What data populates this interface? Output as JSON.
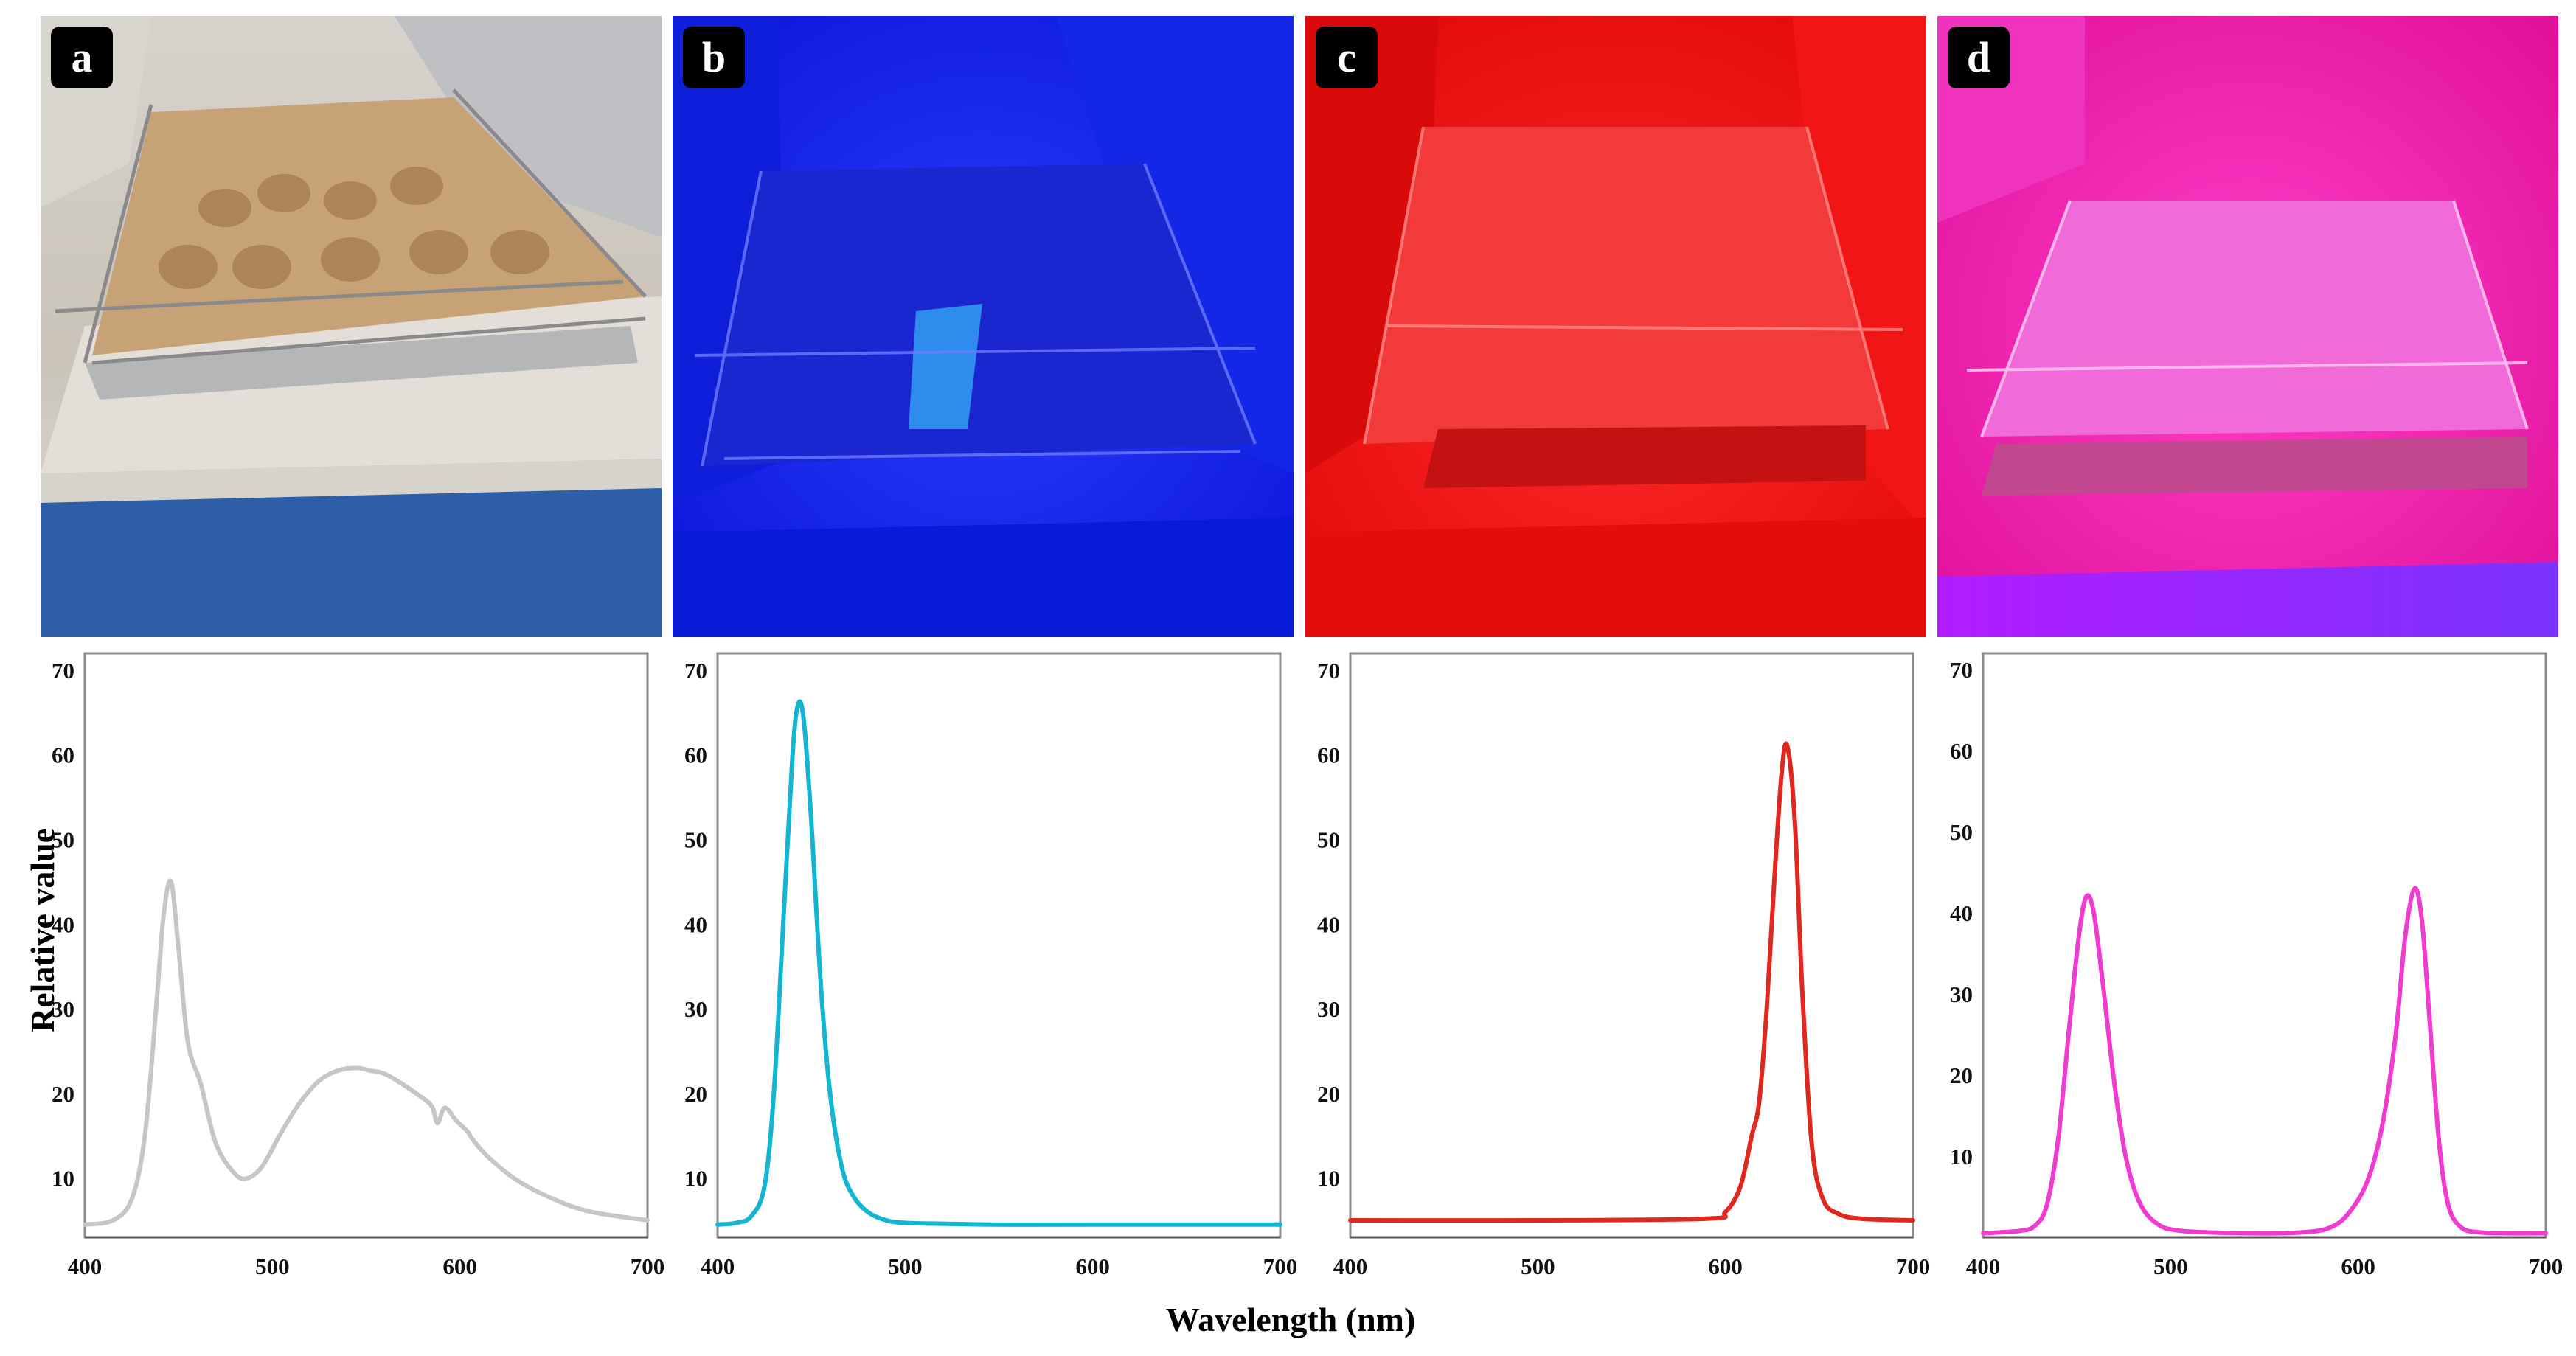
{
  "figure": {
    "ylabel": "Relative value",
    "xlabel": "Wavelength (nm)"
  },
  "panels": [
    {
      "label": "a",
      "light": "white",
      "tint": "#b5a389"
    },
    {
      "label": "b",
      "light": "blue",
      "tint": "#1a28ff"
    },
    {
      "label": "c",
      "light": "red",
      "tint": "#ff1a1a"
    },
    {
      "label": "d",
      "light": "red-blue",
      "tint": "#ff1fb4"
    }
  ],
  "chart_data": [
    {
      "type": "line",
      "panel": "a",
      "color": "#c6c6c6",
      "xlim": [
        400,
        700
      ],
      "ylim": [
        3,
        72
      ],
      "xticks": [
        400,
        500,
        600,
        700
      ],
      "yticks": [
        10,
        20,
        30,
        40,
        50,
        60,
        70
      ],
      "x": [
        400,
        415,
        425,
        432,
        438,
        442,
        446,
        450,
        455,
        462,
        470,
        480,
        487,
        495,
        505,
        515,
        525,
        535,
        545,
        552,
        560,
        570,
        578,
        585,
        588,
        592,
        598,
        604,
        607,
        615,
        630,
        650,
        670,
        700
      ],
      "y": [
        4.5,
        5,
        7.5,
        15,
        30,
        41,
        45,
        37,
        26,
        21,
        14,
        10.5,
        10,
        11.5,
        15.5,
        19,
        21.5,
        22.7,
        23,
        22.7,
        22.3,
        21,
        19.8,
        18.5,
        16.5,
        18.3,
        16.8,
        15.5,
        14.5,
        12.5,
        9.8,
        7.5,
        6,
        5
      ]
    },
    {
      "type": "line",
      "panel": "b",
      "color": "#14b4d3",
      "xlim": [
        400,
        700
      ],
      "ylim": [
        3,
        72
      ],
      "xticks": [
        400,
        500,
        600,
        700
      ],
      "yticks": [
        10,
        20,
        30,
        40,
        50,
        60,
        70
      ],
      "x": [
        400,
        410,
        418,
        425,
        430,
        435,
        440,
        443,
        446,
        450,
        455,
        460,
        466,
        472,
        480,
        490,
        500,
        520,
        550,
        600,
        700
      ],
      "y": [
        4.5,
        4.7,
        5.5,
        9,
        20,
        40,
        60,
        66,
        64,
        52,
        33,
        20,
        11.5,
        8,
        6,
        5,
        4.7,
        4.6,
        4.5,
        4.5,
        4.5
      ]
    },
    {
      "type": "line",
      "panel": "c",
      "color": "#e0281f",
      "xlim": [
        400,
        700
      ],
      "ylim": [
        3,
        72
      ],
      "xticks": [
        400,
        500,
        600,
        700
      ],
      "yticks": [
        10,
        20,
        30,
        40,
        50,
        60,
        70
      ],
      "x": [
        400,
        500,
        590,
        600,
        608,
        614,
        618,
        622,
        626,
        630,
        633,
        637,
        641,
        646,
        652,
        660,
        672,
        700
      ],
      "y": [
        5,
        5,
        5.2,
        6,
        9,
        15,
        19,
        30,
        45,
        58,
        61,
        52,
        32,
        14,
        7.5,
        5.8,
        5.2,
        5
      ]
    },
    {
      "type": "line",
      "panel": "d",
      "color": "#ef3bd0",
      "xlim": [
        400,
        700
      ],
      "ylim": [
        0,
        72
      ],
      "xticks": [
        400,
        500,
        600,
        700
      ],
      "yticks": [
        10,
        20,
        30,
        40,
        50,
        60,
        70
      ],
      "x": [
        400,
        420,
        428,
        434,
        440,
        446,
        451,
        455,
        459,
        464,
        470,
        476,
        483,
        492,
        505,
        540,
        570,
        585,
        595,
        605,
        613,
        620,
        625,
        630,
        634,
        638,
        643,
        648,
        655,
        665,
        680,
        700
      ],
      "y": [
        0.5,
        0.8,
        1.5,
        4,
        12,
        26,
        37,
        42,
        40,
        31,
        19,
        10,
        4.5,
        1.8,
        0.8,
        0.5,
        0.6,
        1.2,
        3,
        7,
        14,
        25,
        37,
        43,
        39,
        27,
        12,
        4,
        1.2,
        0.6,
        0.5,
        0.5
      ]
    }
  ]
}
